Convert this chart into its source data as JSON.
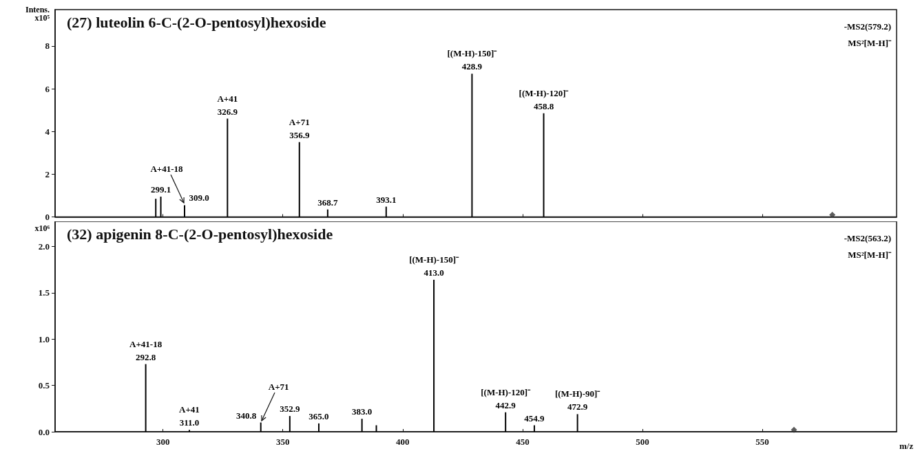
{
  "chart_data": [
    {
      "type": "bar",
      "title": "(27) luteolin 6-C-(2-O-pentosyl)hexoside",
      "ylabel": "Intens.\nx10⁵",
      "xlim": [
        255,
        606
      ],
      "xticks": [
        300,
        350,
        400,
        450,
        500,
        550
      ],
      "ylim": [
        0,
        9.7
      ],
      "yticks": [
        0,
        2,
        4,
        6,
        8
      ],
      "tick_labels": "y",
      "grid": false,
      "series": [
        {
          "color": "#000000",
          "x": [
            297.0,
            299.1,
            309.0,
            326.9,
            356.9,
            368.7,
            393.1,
            428.9,
            458.8
          ],
          "values": [
            0.85,
            0.95,
            0.55,
            4.6,
            3.5,
            0.35,
            0.48,
            6.7,
            4.85
          ]
        },
        {
          "type": "scatter",
          "marker": "diamond",
          "color": "#333333",
          "x": [
            579.2
          ],
          "values": [
            0.1
          ]
        }
      ],
      "annotations": [
        {
          "text": "299.1",
          "x": 299.1,
          "y": 0.95
        },
        {
          "text": "309.0",
          "x": 309.0,
          "y": 0.55
        },
        {
          "text": "A+41-18",
          "x": 309.0,
          "y": 0.55
        },
        {
          "text": "326.9",
          "x": 326.9,
          "y": 4.6
        },
        {
          "text": "A+41",
          "x": 326.9,
          "y": 4.6
        },
        {
          "text": "356.9",
          "x": 356.9,
          "y": 3.5
        },
        {
          "text": "A+71",
          "x": 356.9,
          "y": 3.5
        },
        {
          "text": "368.7",
          "x": 368.7,
          "y": 0.35
        },
        {
          "text": "393.1",
          "x": 393.1,
          "y": 0.48
        },
        {
          "text": "428.9",
          "x": 428.9,
          "y": 6.7
        },
        {
          "text": "[(M-H)-150]⁻",
          "x": 428.9,
          "y": 6.7
        },
        {
          "text": "458.8",
          "x": 458.8,
          "y": 4.85
        },
        {
          "text": "[(M-H)-120]⁻",
          "x": 458.8,
          "y": 4.85
        },
        "-MS2(579.2)",
        "MS²[M-H]⁻"
      ]
    },
    {
      "type": "bar",
      "title": "(32) apigenin 8-C-(2-O-pentosyl)hexoside",
      "ylabel": "x10⁶",
      "xlabel": "m/z",
      "xlim": [
        255,
        606
      ],
      "xticks": [
        300,
        350,
        400,
        450,
        500,
        550
      ],
      "ylim": [
        0,
        2.27
      ],
      "yticks": [
        {
          "value": 0,
          "label": "0.0"
        },
        {
          "value": 0.5,
          "label": "0.5"
        },
        {
          "value": 1,
          "label": "1.0"
        },
        {
          "value": 1.5,
          "label": "1.5"
        },
        {
          "value": 2,
          "label": "2.0"
        }
      ],
      "grid": false,
      "series": [
        {
          "color": "#000000",
          "x": [
            292.8,
            311.0,
            340.8,
            352.9,
            365.0,
            383.0,
            389.0,
            413.0,
            442.9,
            454.9,
            472.9
          ],
          "values": [
            0.73,
            0.02,
            0.1,
            0.17,
            0.09,
            0.14,
            0.07,
            1.64,
            0.21,
            0.07,
            0.19
          ]
        },
        {
          "type": "scatter",
          "marker": "diamond",
          "color": "#333333",
          "x": [
            563.2
          ],
          "values": [
            0.02
          ]
        }
      ],
      "annotations": [
        {
          "text": "292.8",
          "x": 292.8,
          "y": 0.73
        },
        {
          "text": "A+41-18",
          "x": 292.8,
          "y": 0.73
        },
        {
          "text": "311.0",
          "x": 311.0,
          "y": 0.02
        },
        {
          "text": "A+41",
          "x": 311.0,
          "y": 0.02
        },
        {
          "text": "340.8",
          "x": 340.8,
          "y": 0.1
        },
        {
          "text": "A+71",
          "x": 340.8,
          "y": 0.1
        },
        {
          "text": "352.9",
          "x": 352.9,
          "y": 0.17
        },
        {
          "text": "365.0",
          "x": 365.0,
          "y": 0.09
        },
        {
          "text": "383.0",
          "x": 383.0,
          "y": 0.14
        },
        {
          "text": "413.0",
          "x": 413.0,
          "y": 1.64
        },
        {
          "text": "[(M-H)-150]⁻",
          "x": 413.0,
          "y": 1.64
        },
        {
          "text": "442.9",
          "x": 442.9,
          "y": 0.21
        },
        {
          "text": "[(M-H)-120]⁻",
          "x": 442.9,
          "y": 0.21
        },
        {
          "text": "454.9",
          "x": 454.9,
          "y": 0.07
        },
        {
          "text": "472.9",
          "x": 472.9,
          "y": 0.19
        },
        {
          "text": "[(M-H)-90]⁻",
          "x": 472.9,
          "y": 0.19
        },
        "-MS2(563.2)",
        "MS²[M-H]⁻"
      ]
    }
  ]
}
